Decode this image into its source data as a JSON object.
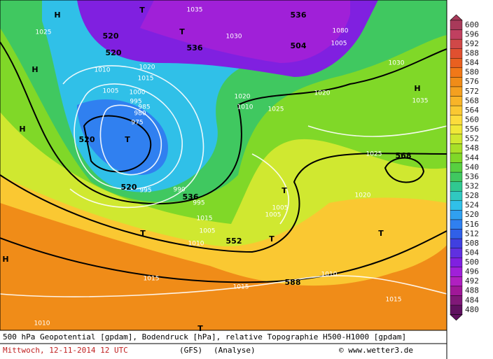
{
  "legend": {
    "labels": [
      "600",
      "596",
      "592",
      "588",
      "584",
      "580",
      "576",
      "572",
      "568",
      "564",
      "560",
      "556",
      "552",
      "548",
      "544",
      "540",
      "536",
      "532",
      "528",
      "524",
      "520",
      "516",
      "512",
      "508",
      "504",
      "500",
      "496",
      "492",
      "488",
      "484",
      "480"
    ],
    "colors": [
      "#a83a5a",
      "#c04060",
      "#d04848",
      "#e05030",
      "#e86020",
      "#f07818",
      "#f08c18",
      "#f4a020",
      "#f8b428",
      "#fac832",
      "#fcdc3c",
      "#f0e838",
      "#d0e830",
      "#a8e028",
      "#80d828",
      "#58d040",
      "#40c860",
      "#30c890",
      "#30c8c0",
      "#30c0e8",
      "#30a0f0",
      "#3080f0",
      "#3060e8",
      "#4040e0",
      "#6030e0",
      "#8020e0",
      "#a020d8",
      "#b020c0",
      "#a01898",
      "#801878",
      "#601060"
    ]
  },
  "map_labels": {
    "white": [
      "1035",
      "1025",
      "1030",
      "1010",
      "1020",
      "1015",
      "1005",
      "1000",
      "995",
      "985",
      "980",
      "975",
      "990",
      "995",
      "1005",
      "1010",
      "1015",
      "1015",
      "1025",
      "1020",
      "1025",
      "1030",
      "1035",
      "1005",
      "1005",
      "1015",
      "1010",
      "1020",
      "1015",
      "1080",
      "1005",
      "995",
      "1010",
      "1020",
      "1010"
    ],
    "black": [
      "H",
      "T",
      "520",
      "536",
      "504",
      "520",
      "T",
      "H",
      "536",
      "H",
      "520",
      "T",
      "520",
      "536",
      "552",
      "T",
      "T",
      "588",
      "568",
      "H",
      "H",
      "T",
      "T",
      "T"
    ]
  },
  "caption": {
    "line1": "500 hPa Geopotential [gpdam], Bodendruck [hPa], relative Topographie H500-H1000 [gpdam]",
    "date": "Mittwoch, 12-11-2014  12 UTC",
    "model": "(GFS)",
    "run": "(Analyse)",
    "source": "© www.wetter3.de"
  }
}
